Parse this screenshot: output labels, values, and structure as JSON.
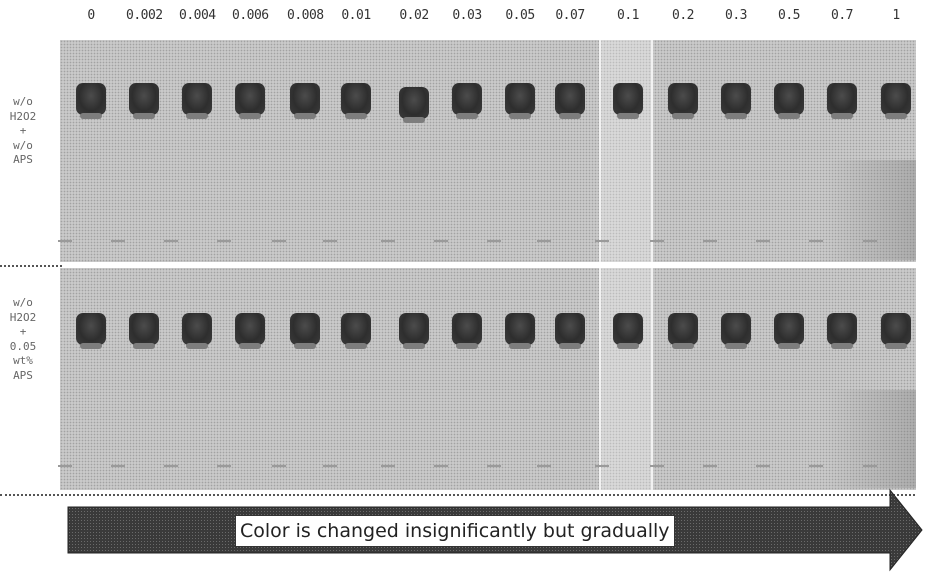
{
  "concentrations": [
    "0",
    "0.002",
    "0.004",
    "0.006",
    "0.008",
    "0.01",
    "0.02",
    "0.03",
    "0.05",
    "0.07",
    "0.1",
    "0.2",
    "0.3",
    "0.5",
    "0.7",
    "1"
  ],
  "panels": [
    {
      "condition_lines": [
        "w/o",
        "H2O2",
        "+",
        "w/o",
        "APS"
      ]
    },
    {
      "condition_lines": [
        "w/o",
        "H2O2",
        "+",
        "0.05",
        "wt%",
        "APS"
      ]
    }
  ],
  "arrow_label": "Color is changed insignificantly but gradually",
  "colors": {
    "background": "#c9c9c9",
    "band": "#333333",
    "arrow": "#3a3a3a"
  }
}
